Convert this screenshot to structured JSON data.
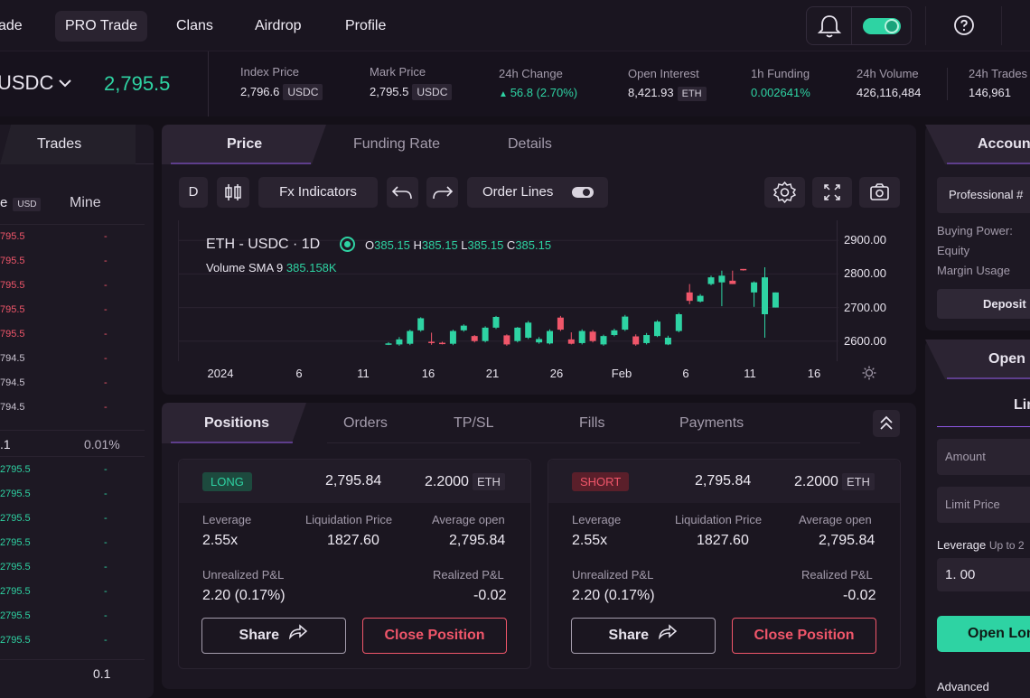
{
  "nav": {
    "trade_label": "ade",
    "pro_trade_label": "PRO Trade",
    "clans_label": "Clans",
    "airdrop_label": "Airdrop",
    "profile_label": "Profile"
  },
  "ticker": {
    "pair": "USDC",
    "price": "2,795.5",
    "stats": [
      {
        "label": "Index Price",
        "value": "2,796.6",
        "unit": "USDC"
      },
      {
        "label": "Mark Price",
        "value": "2,795.5",
        "unit": "USDC"
      },
      {
        "label": "24h Change",
        "value": "56.8 (2.70%)"
      },
      {
        "label": "Open Interest",
        "value": "8,421.93",
        "unit": "ETH"
      },
      {
        "label": "1h Funding",
        "value": "0.002641%"
      },
      {
        "label": "24h Volume",
        "value": "426,116,484"
      },
      {
        "label": "24h Trades",
        "value": "146,961"
      }
    ]
  },
  "trades_panel": {
    "title": "Trades",
    "col_price": "e",
    "col_unit": "USD",
    "col_mine": "Mine",
    "sell_rows": [
      "795.5",
      "795.5",
      "795.5",
      "795.5",
      "795.5",
      "794.5",
      "794.5",
      "794.5"
    ],
    "mid_left": ".1",
    "mid_right": "0.01%",
    "buy_rows": [
      "2795.5",
      "2795.5",
      "2795.5",
      "2795.5",
      "2795.5",
      "2795.5",
      "2795.5",
      "2795.5"
    ],
    "dash": "-",
    "footer_value": "0.1"
  },
  "chart_panel": {
    "tabs": [
      "Price",
      "Funding Rate",
      "Details"
    ],
    "toolbar": {
      "interval": "D",
      "indicators": "Fx Indicators",
      "order_lines": "Order Lines"
    },
    "symbol": "ETH - USDC · 1D",
    "ohlc": {
      "o_label": "O",
      "o": "385.15",
      "h_label": "H",
      "h": "385.15",
      "l_label": "L",
      "l": "385.15",
      "c_label": "C",
      "c": "385.15"
    },
    "volume_label": "Volume SMA 9",
    "volume_value": "385.158K"
  },
  "chart_data": {
    "type": "candlestick",
    "y_ticks": [
      "2900.00",
      "2800.00",
      "2700.00",
      "2600.00"
    ],
    "ylim": [
      2540,
      2960
    ],
    "x_ticks": [
      "2024",
      "6",
      "11",
      "16",
      "21",
      "26",
      "Feb",
      "6",
      "11",
      "16"
    ],
    "candles": [
      {
        "o": 2590,
        "c": 2593,
        "h": 2597,
        "l": 2588
      },
      {
        "o": 2590,
        "c": 2605,
        "h": 2612,
        "l": 2586
      },
      {
        "o": 2592,
        "c": 2630,
        "h": 2634,
        "l": 2588
      },
      {
        "o": 2632,
        "c": 2668,
        "h": 2671,
        "l": 2628
      },
      {
        "o": 2598,
        "c": 2594,
        "h": 2625,
        "l": 2589
      },
      {
        "o": 2595,
        "c": 2592,
        "h": 2598,
        "l": 2590
      },
      {
        "o": 2592,
        "c": 2630,
        "h": 2634,
        "l": 2588
      },
      {
        "o": 2632,
        "c": 2646,
        "h": 2650,
        "l": 2628
      },
      {
        "o": 2615,
        "c": 2600,
        "h": 2618,
        "l": 2596
      },
      {
        "o": 2600,
        "c": 2640,
        "h": 2644,
        "l": 2596
      },
      {
        "o": 2640,
        "c": 2672,
        "h": 2675,
        "l": 2636
      },
      {
        "o": 2617,
        "c": 2590,
        "h": 2620,
        "l": 2586
      },
      {
        "o": 2600,
        "c": 2640,
        "h": 2642,
        "l": 2596
      },
      {
        "o": 2610,
        "c": 2655,
        "h": 2660,
        "l": 2606
      },
      {
        "o": 2596,
        "c": 2606,
        "h": 2612,
        "l": 2592
      },
      {
        "o": 2593,
        "c": 2630,
        "h": 2635,
        "l": 2590
      },
      {
        "o": 2670,
        "c": 2634,
        "h": 2675,
        "l": 2630
      },
      {
        "o": 2605,
        "c": 2592,
        "h": 2626,
        "l": 2590
      },
      {
        "o": 2594,
        "c": 2630,
        "h": 2635,
        "l": 2590
      },
      {
        "o": 2628,
        "c": 2600,
        "h": 2633,
        "l": 2596
      },
      {
        "o": 2590,
        "c": 2615,
        "h": 2619,
        "l": 2586
      },
      {
        "o": 2618,
        "c": 2632,
        "h": 2637,
        "l": 2614
      },
      {
        "o": 2634,
        "c": 2673,
        "h": 2678,
        "l": 2630
      },
      {
        "o": 2614,
        "c": 2590,
        "h": 2620,
        "l": 2586
      },
      {
        "o": 2594,
        "c": 2618,
        "h": 2624,
        "l": 2590
      },
      {
        "o": 2615,
        "c": 2658,
        "h": 2662,
        "l": 2612
      },
      {
        "o": 2590,
        "c": 2610,
        "h": 2616,
        "l": 2588
      },
      {
        "o": 2630,
        "c": 2680,
        "h": 2684,
        "l": 2626
      },
      {
        "o": 2745,
        "c": 2720,
        "h": 2770,
        "l": 2710
      },
      {
        "o": 2718,
        "c": 2735,
        "h": 2740,
        "l": 2715
      },
      {
        "o": 2770,
        "c": 2790,
        "h": 2795,
        "l": 2766
      },
      {
        "o": 2775,
        "c": 2795,
        "h": 2810,
        "l": 2704
      },
      {
        "o": 2780,
        "c": 2770,
        "h": 2810,
        "l": 2770
      },
      {
        "o": 2815,
        "c": 2812,
        "h": 2815,
        "l": 2810
      },
      {
        "o": 2745,
        "c": 2775,
        "h": 2778,
        "l": 2702
      },
      {
        "o": 2680,
        "c": 2790,
        "h": 2820,
        "l": 2610
      },
      {
        "o": 2700,
        "c": 2745,
        "h": 2745,
        "l": 2700
      }
    ]
  },
  "positions_panel": {
    "tabs": [
      "Positions",
      "Orders",
      "TP/SL",
      "Fills",
      "Payments"
    ],
    "cards": [
      {
        "side": "LONG",
        "price": "2,795.84",
        "size": "2.2000",
        "unit": "ETH",
        "leverage_label": "Leverage",
        "leverage": "2.55x",
        "liq_label": "Liquidation Price",
        "liq": "1827.60",
        "avg_label": "Average open",
        "avg": "2,795.84",
        "upnl_label": "Unrealized P&L",
        "upnl": "2.20 (0.17%)",
        "rpnl_label": "Realized P&L",
        "rpnl": "-0.02",
        "share_label": "Share",
        "close_label": "Close Position"
      },
      {
        "side": "SHORT",
        "price": "2,795.84",
        "size": "2.2000",
        "unit": "ETH",
        "leverage_label": "Leverage",
        "leverage": "2.55x",
        "liq_label": "Liquidation Price",
        "liq": "1827.60",
        "avg_label": "Average open",
        "avg": "2,795.84",
        "upnl_label": "Unrealized P&L",
        "upnl": "2.20 (0.17%)",
        "rpnl_label": "Realized P&L",
        "rpnl": "-0.02",
        "share_label": "Share",
        "close_label": "Close Position"
      }
    ]
  },
  "account_panel": {
    "title": "Accoun",
    "account_select": "Professional #",
    "buying_power": "Buying Power:",
    "equity": "Equity",
    "margin_usage": "Margin Usage",
    "deposit": "Deposit"
  },
  "order_panel": {
    "title": "Open",
    "order_type": "Limi",
    "amount_placeholder": "Amount",
    "limit_price_placeholder": "Limit Price",
    "leverage_label": "Leverage",
    "leverage_hint": "Up to 2",
    "leverage_value": "1. 00",
    "submit": "Open Lon",
    "advanced": "Advanced"
  },
  "colors": {
    "green": "#2ed3a3",
    "red": "#f0566a",
    "accent": "#a66bf5"
  }
}
